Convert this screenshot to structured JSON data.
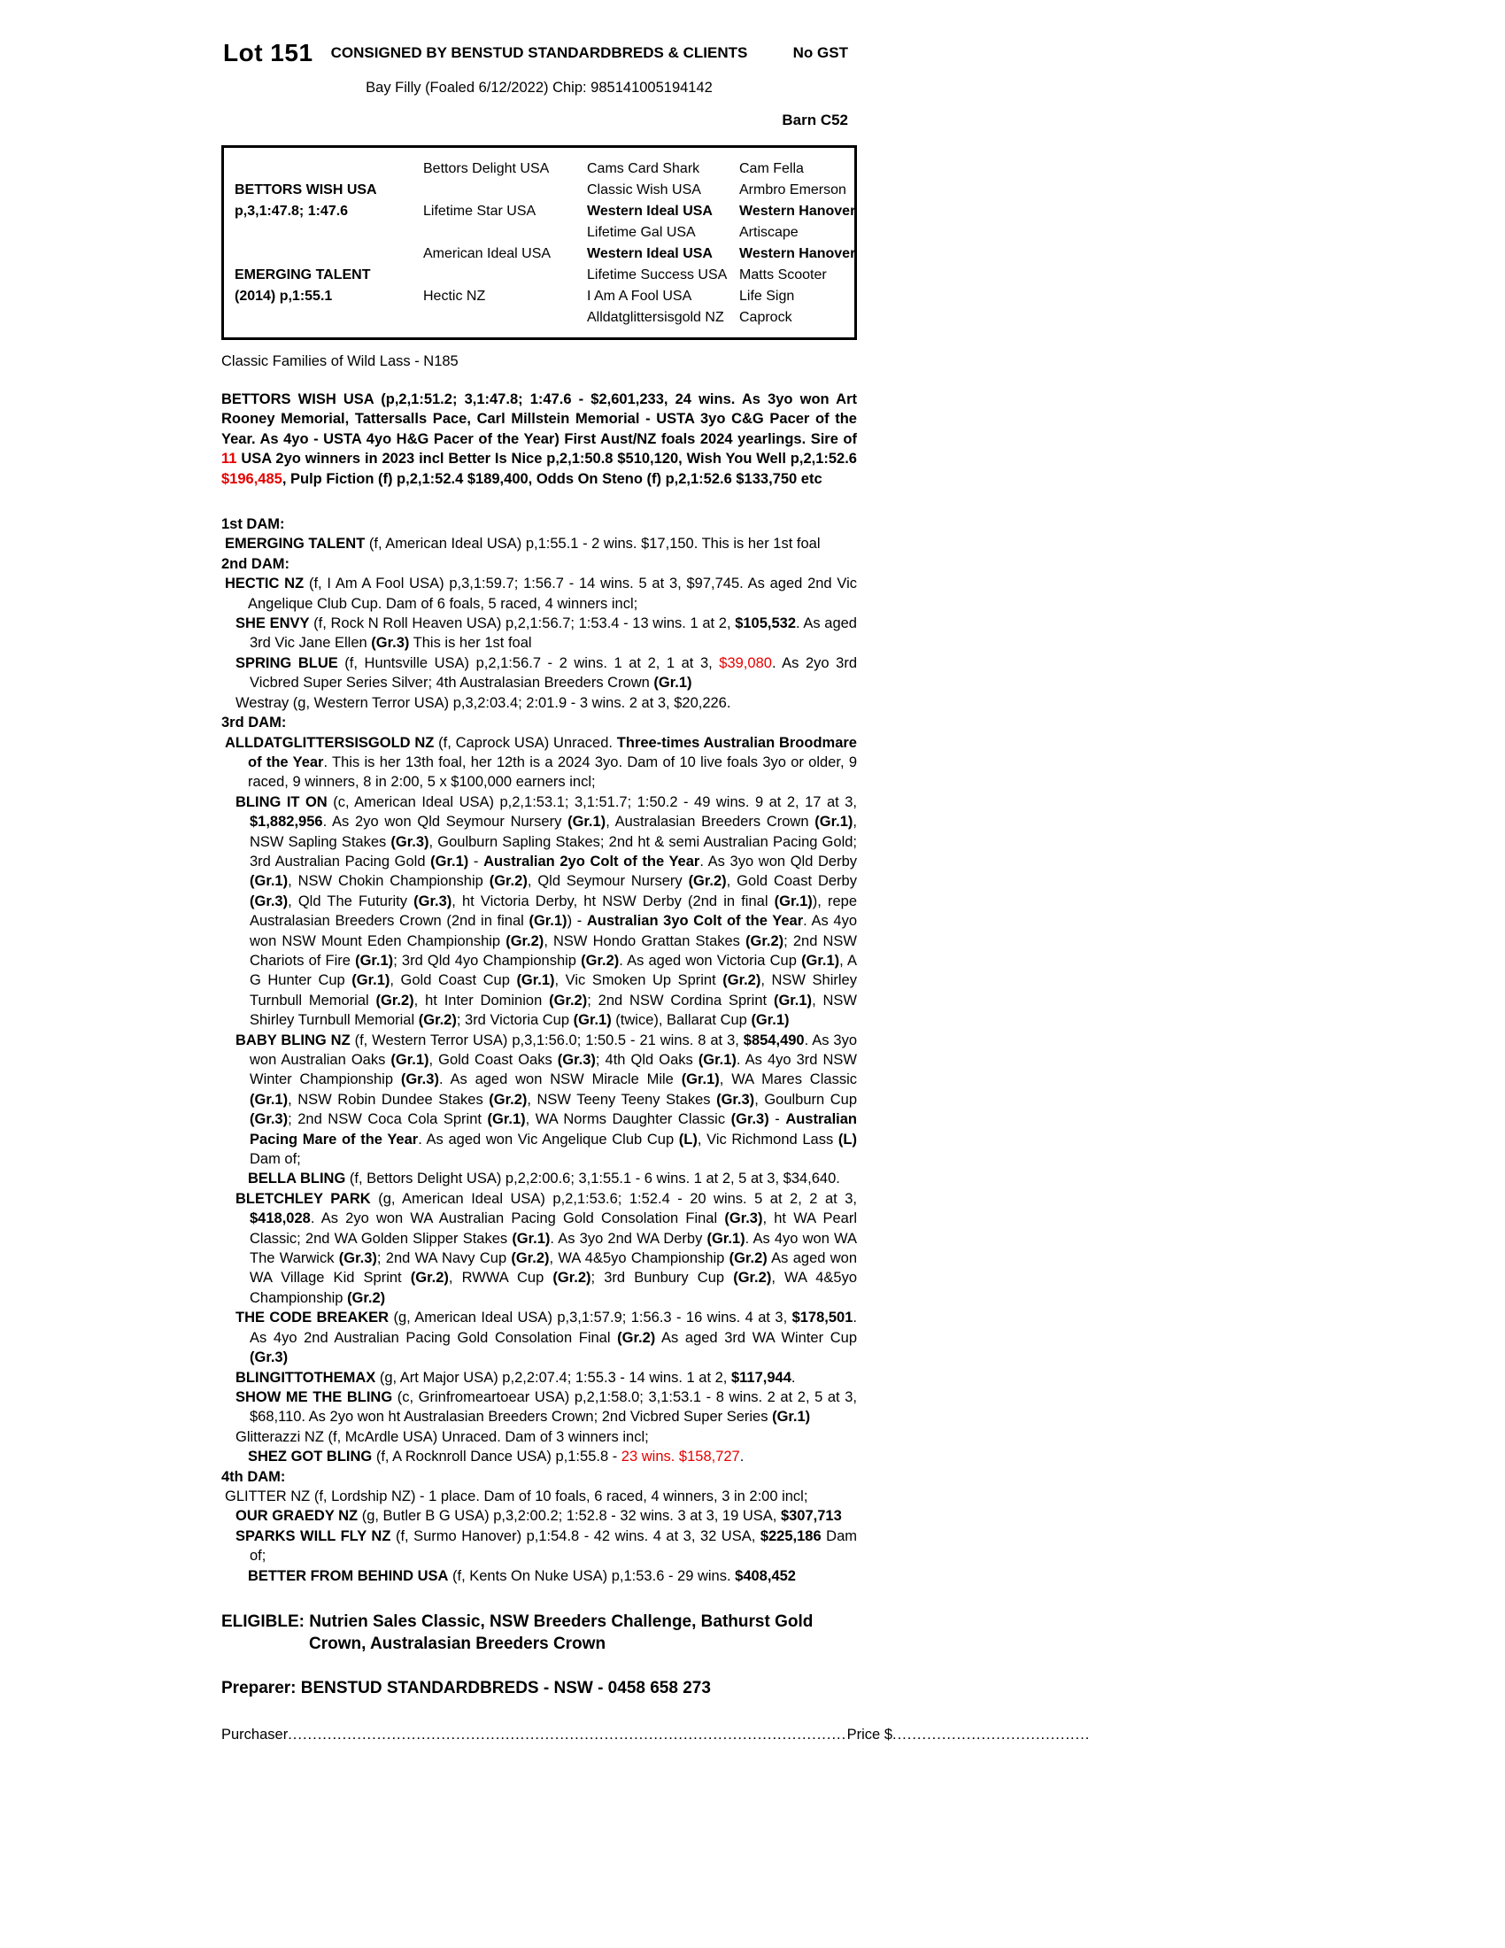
{
  "colors": {
    "highlight_red": "#e60000"
  },
  "header": {
    "lot": "Lot 151",
    "consigned": "CONSIGNED BY BENSTUD STANDARDBREDS & CLIENTS",
    "no_gst": "No GST",
    "foal_line": "Bay Filly (Foaled 6/12/2022) Chip: 985141005194142",
    "barn": "Barn C52"
  },
  "pedigree": {
    "lines": [
      {
        "c1": "",
        "c2": "Bettors Delight USA",
        "c3": "Cams Card Shark",
        "c4": "Cam Fella"
      },
      {
        "c1": "**BETTORS WISH USA**",
        "c2": "",
        "c3": "Classic Wish USA",
        "c4": "Armbro Emerson"
      },
      {
        "c1": "**p,3,1:47.8; 1:47.6**",
        "c2": "Lifetime Star USA",
        "c3": "**Western Ideal USA**",
        "c4": "**Western Hanover**"
      },
      {
        "c1": "",
        "c2": "",
        "c3": "Lifetime Gal USA",
        "c4": "Artiscape"
      },
      {
        "c1": "",
        "c2": "American Ideal USA",
        "c3": "**Western Ideal USA**",
        "c4": "**Western Hanover**"
      },
      {
        "c1": "**EMERGING TALENT**",
        "c2": "",
        "c3": "Lifetime Success USA",
        "c4": "Matts Scooter"
      },
      {
        "c1": "**(2014) p,1:55.1**",
        "c2": "Hectic NZ",
        "c3": "I Am A Fool USA",
        "c4": "Life Sign"
      },
      {
        "c1": "",
        "c2": "",
        "c3": "Alldatglittersisgold NZ",
        "c4": "Caprock"
      }
    ]
  },
  "family_line": "Classic Families of Wild Lass - N185",
  "sire_para": "BETTORS WISH USA (p,2,1:51.2; 3,1:47.8; 1:47.6 - $2,601,233, 24 wins. As 3yo won Art Rooney Memorial, Tattersalls Pace, Carl Millstein Memorial - USTA 3yo C&G Pacer of the Year. As 4yo - USTA 4yo H&G Pacer of the Year) First Aust/NZ foals 2024 yearlings. Sire of ^^11^^ USA 2yo winners in 2023 incl Better Is Nice p,2,1:50.8 $510,120, Wish You Well p,2,1:52.6 ^^$196,485^^, Pulp Fiction (f) p,2,1:52.4 $189,400, Odds On Steno (f) p,2,1:52.6 $133,750 etc",
  "body": {
    "dam1_heading": "1st DAM:",
    "emerging_talent": "**EMERGING TALENT** (f, American Ideal USA) p,1:55.1 - 2 wins. $17,150. This is her 1st foal",
    "dam2_heading": "2nd DAM:",
    "hectic": "**HECTIC NZ** (f, I Am A Fool USA) p,3,1:59.7; 1:56.7 - 14 wins. 5 at 3, $97,745. As aged 2nd Vic Angelique Club Cup. Dam of 6 foals, 5 raced, 4 winners incl;",
    "she_envy": "**SHE ENVY** (f, Rock N Roll Heaven USA) p,2,1:56.7; 1:53.4 - 13 wins. 1 at 2, **$105,532**. As aged 3rd Vic Jane Ellen **(Gr.3)** This is her 1st foal",
    "spring_blue": "**SPRING BLUE** (f, Huntsville USA) p,2,1:56.7 - 2 wins. 1 at 2, 1 at 3, ^^$39,080^^. As 2yo 3rd Vicbred Super Series Silver; 4th Australasian Breeders Crown **(Gr.1)**",
    "westray": "Westray (g, Western Terror USA) p,3,2:03.4; 2:01.9 - 3 wins. 2 at 3, $20,226.",
    "dam3_heading": "3rd DAM:",
    "alldat": "**ALLDATGLITTERSISGOLD NZ** (f, Caprock USA) Unraced. **Three-times Australian Broodmare of the Year**. This is her 13th foal, her 12th is a 2024 3yo. Dam of 10 live foals 3yo or older, 9 raced, 9 winners, 8 in 2:00, 5 x $100,000 earners incl;",
    "bling_it_on": "**BLING IT ON** (c, American Ideal USA) p,2,1:53.1; 3,1:51.7; 1:50.2 - 49 wins. 9 at 2, 17 at 3, **$1,882,956**. As 2yo won Qld Seymour Nursery **(Gr.1)**, Australasian Breeders Crown **(Gr.1)**, NSW Sapling Stakes **(Gr.3)**, Goulburn Sapling Stakes; 2nd ht & semi Australian Pacing Gold; 3rd Australian Pacing Gold **(Gr.1)** - **Australian 2yo Colt of the Year**. As 3yo won Qld Derby **(Gr.1)**, NSW Chokin Championship **(Gr.2)**, Qld Seymour Nursery **(Gr.2)**, Gold Coast Derby **(Gr.3)**, Qld The Futurity **(Gr.3)**, ht Victoria Derby, ht NSW Derby (2nd in final **(Gr.1)**), repe Australasian Breeders Crown (2nd in final **(Gr.1)**) - **Australian 3yo Colt of the Year**. As 4yo won NSW Mount Eden Championship **(Gr.2)**, NSW Hondo Grattan Stakes **(Gr.2)**; 2nd NSW Chariots of Fire **(Gr.1)**; 3rd Qld 4yo Championship **(Gr.2)**. As aged won Victoria Cup **(Gr.1)**, A G Hunter Cup **(Gr.1)**, Gold Coast Cup **(Gr.1)**, Vic Smoken Up Sprint **(Gr.2)**, NSW Shirley Turnbull Memorial **(Gr.2)**, ht Inter Dominion **(Gr.2)**; 2nd NSW Cordina Sprint **(Gr.1)**, NSW Shirley Turnbull Memorial **(Gr.2)**; 3rd Victoria Cup **(Gr.1)** (twice), Ballarat Cup **(Gr.1)**",
    "baby_bling": "**BABY BLING NZ** (f, Western Terror USA) p,3,1:56.0; 1:50.5 - 21 wins. 8 at 3, **$854,490**. As 3yo won Australian Oaks **(Gr.1)**, Gold Coast Oaks **(Gr.3)**; 4th Qld Oaks **(Gr.1)**. As 4yo 3rd NSW Winter Championship **(Gr.3)**. As aged won NSW Miracle Mile **(Gr.1)**, WA Mares Classic **(Gr.1)**, NSW Robin Dundee Stakes **(Gr.2)**, NSW Teeny Teeny Stakes **(Gr.3)**, Goulburn Cup **(Gr.3)**; 2nd NSW Coca Cola Sprint **(Gr.1)**, WA Norms Daughter Classic **(Gr.3)** - **Australian Pacing Mare of the Year**. As aged won Vic Angelique Club Cup **(L)**, Vic Richmond Lass **(L)** Dam of;",
    "bella_bling": "**BELLA BLING** (f, Bettors Delight USA) p,2,2:00.6; 3,1:55.1 - 6 wins. 1 at 2, 5 at 3, $34,640.",
    "bletchley_park": "**BLETCHLEY PARK** (g, American Ideal USA) p,2,1:53.6; 1:52.4 - 20 wins. 5 at 2, 2 at 3, **$418,028**. As 2yo won WA Australian Pacing Gold Consolation Final **(Gr.3)**, ht WA Pearl Classic; 2nd WA Golden Slipper Stakes **(Gr.1)**. As 3yo 2nd WA Derby **(Gr.1)**. As 4yo won WA The Warwick **(Gr.3)**; 2nd WA Navy Cup **(Gr.2)**, WA 4&5yo Championship **(Gr.2)** As aged won WA Village Kid Sprint **(Gr.2)**, RWWA Cup **(Gr.2)**; 3rd Bunbury Cup **(Gr.2)**, WA 4&5yo Championship **(Gr.2)**",
    "code_breaker": "**THE CODE BREAKER** (g, American Ideal USA) p,3,1:57.9; 1:56.3 - 16 wins. 4 at 3, **$178,501**. As 4yo 2nd Australian Pacing Gold Consolation Final **(Gr.2)** As aged 3rd WA Winter Cup **(Gr.3)**",
    "blingittothemax": "**BLINGITTOTHEMAX** (g, Art Major USA) p,2,2:07.4; 1:55.3 - 14 wins. 1 at 2, **$117,944**.",
    "show_me_the_bling": "**SHOW ME THE BLING** (c, Grinfromeartoear USA) p,2,1:58.0; 3,1:53.1 - 8 wins. 2 at 2, 5 at 3, $68,110. As 2yo won ht Australasian Breeders Crown; 2nd Vicbred Super Series **(Gr.1)**",
    "glitterazzi": "Glitterazzi NZ (f, McArdle USA) Unraced. Dam of 3 winners incl;",
    "shez_got_bling": "**SHEZ GOT BLING** (f, A Rocknroll Dance USA) p,1:55.8 - ^^23 wins. $158,727^^.",
    "dam4_heading": "4th DAM:",
    "glitter": "GLITTER NZ (f, Lordship NZ) - 1 place. Dam of 10 foals, 6 raced, 4 winners, 3 in 2:00 incl;",
    "our_graedy": "**OUR GRAEDY NZ** (g, Butler B G USA) p,3,2:00.2; 1:52.8 - 32 wins. 3 at 3, 19 USA, **$307,713**",
    "sparks_will_fly": "**SPARKS WILL FLY NZ** (f, Surmo Hanover) p,1:54.8 - 42 wins. 4 at 3, 32 USA, **$225,186** Dam of;",
    "better_from_behind": "**BETTER FROM BEHIND USA** (f, Kents On Nuke USA) p,1:53.6 - 29 wins. **$408,452**"
  },
  "eligible": {
    "label": "ELIGIBLE:",
    "text": "Nutrien Sales Classic, NSW Breeders Challenge, Bathurst Gold Crown, Australasian Breeders Crown"
  },
  "preparer_line": "Preparer: BENSTUD STANDARDBREDS - NSW - 0458 658 273",
  "purchaser": {
    "label": "Purchaser",
    "leader1": "........................................................................................................................................................................",
    "price_label": "Price $",
    "leader2": "............................................................................"
  }
}
